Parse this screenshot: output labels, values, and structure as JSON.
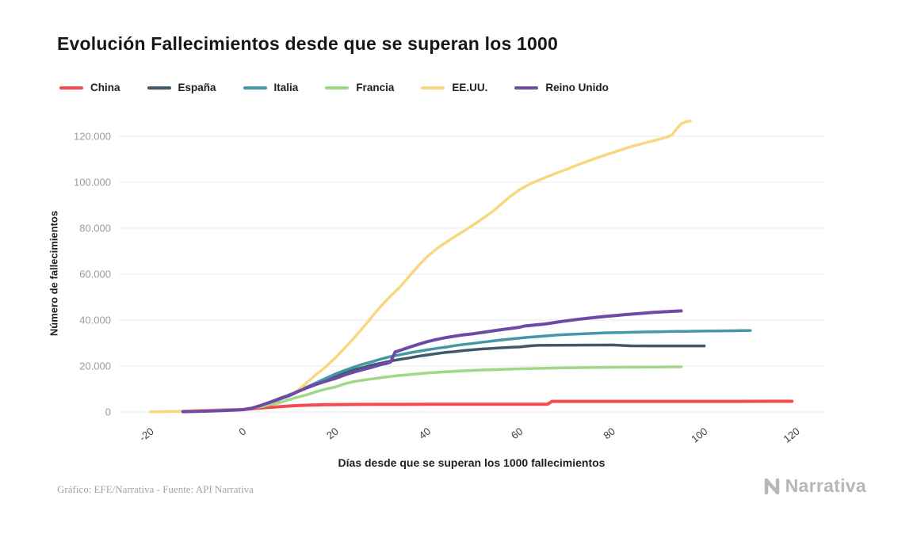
{
  "header": {
    "title": "Evolución Fallecimientos desde que se superan los 1000"
  },
  "footer": {
    "credit": "Gráfico: EFE/Narrativa - Fuente: API Narrativa",
    "brand": "Narrativa"
  },
  "chart_data": {
    "type": "line",
    "title": "Evolución Fallecimientos desde que se superan los 1000",
    "xlabel": "Días desde que se superan los 1000 fallecimientos",
    "ylabel": "Número de fallecimientos",
    "xlim": [
      -27,
      126
    ],
    "ylim": [
      0,
      130000
    ],
    "grid": "horizontal",
    "legend_position": "top",
    "x_ticks": [
      -20,
      0,
      20,
      40,
      60,
      80,
      100,
      120
    ],
    "y_ticks": [
      0,
      20000,
      40000,
      60000,
      80000,
      100000,
      120000
    ],
    "y_tick_labels": [
      "0",
      "20.000",
      "40.000",
      "60.000",
      "80.000",
      "100.000",
      "120.000"
    ],
    "gridline_color": "#e9e9e9",
    "y_tick_color": "#9b9b9b",
    "x_tick_color": "#3d3d3d",
    "series": [
      {
        "id": "china",
        "name": "China",
        "color": "#f74a4e",
        "width": 4,
        "points": [
          [
            -13,
            250
          ],
          [
            -11,
            400
          ],
          [
            -9,
            550
          ],
          [
            -7,
            700
          ],
          [
            -5,
            820
          ],
          [
            -3,
            920
          ],
          [
            -1,
            980
          ],
          [
            0,
            1050
          ],
          [
            2,
            1400
          ],
          [
            4,
            1750
          ],
          [
            6,
            2050
          ],
          [
            8,
            2350
          ],
          [
            10,
            2600
          ],
          [
            12,
            2800
          ],
          [
            14,
            2950
          ],
          [
            16,
            3070
          ],
          [
            18,
            3160
          ],
          [
            20,
            3220
          ],
          [
            24,
            3270
          ],
          [
            28,
            3300
          ],
          [
            32,
            3310
          ],
          [
            36,
            3320
          ],
          [
            40,
            3330
          ],
          [
            45,
            3335
          ],
          [
            50,
            3340
          ],
          [
            55,
            3340
          ],
          [
            60,
            3340
          ],
          [
            66,
            3350
          ],
          [
            67,
            4630
          ],
          [
            72,
            4630
          ],
          [
            78,
            4632
          ],
          [
            84,
            4633
          ],
          [
            90,
            4633
          ],
          [
            96,
            4634
          ],
          [
            102,
            4634
          ],
          [
            108,
            4636
          ],
          [
            114,
            4638
          ],
          [
            119,
            4640
          ]
        ]
      },
      {
        "id": "espana",
        "name": "España",
        "color": "#3d5a68",
        "width": 3.5,
        "points": [
          [
            0,
            1000
          ],
          [
            2,
            1750
          ],
          [
            4,
            2810
          ],
          [
            6,
            4400
          ],
          [
            8,
            5980
          ],
          [
            10,
            7340
          ],
          [
            12,
            9050
          ],
          [
            14,
            10940
          ],
          [
            16,
            12640
          ],
          [
            18,
            14050
          ],
          [
            20,
            15440
          ],
          [
            22,
            16970
          ],
          [
            24,
            18260
          ],
          [
            26,
            19320
          ],
          [
            28,
            20450
          ],
          [
            30,
            21280
          ],
          [
            32,
            22160
          ],
          [
            34,
            22900
          ],
          [
            36,
            23520
          ],
          [
            38,
            24280
          ],
          [
            40,
            24820
          ],
          [
            42,
            25430
          ],
          [
            44,
            25960
          ],
          [
            46,
            26300
          ],
          [
            48,
            26750
          ],
          [
            50,
            27120
          ],
          [
            52,
            27450
          ],
          [
            54,
            27700
          ],
          [
            56,
            27940
          ],
          [
            58,
            28130
          ],
          [
            60,
            28320
          ],
          [
            62,
            28750
          ],
          [
            64,
            29010
          ],
          [
            68,
            29080
          ],
          [
            72,
            29120
          ],
          [
            76,
            29150
          ],
          [
            80,
            29160
          ],
          [
            84,
            28780
          ],
          [
            88,
            28750
          ],
          [
            92,
            28750
          ],
          [
            96,
            28750
          ],
          [
            100,
            28760
          ]
        ]
      },
      {
        "id": "italia",
        "name": "Italia",
        "color": "#4596a6",
        "width": 3.5,
        "points": [
          [
            0,
            1020
          ],
          [
            2,
            1800
          ],
          [
            4,
            2700
          ],
          [
            6,
            3900
          ],
          [
            8,
            5480
          ],
          [
            10,
            7500
          ],
          [
            12,
            9130
          ],
          [
            14,
            11000
          ],
          [
            16,
            12830
          ],
          [
            18,
            14680
          ],
          [
            20,
            16520
          ],
          [
            22,
            18080
          ],
          [
            24,
            19470
          ],
          [
            26,
            20800
          ],
          [
            28,
            21860
          ],
          [
            30,
            23080
          ],
          [
            32,
            24110
          ],
          [
            34,
            24900
          ],
          [
            36,
            25690
          ],
          [
            38,
            26380
          ],
          [
            40,
            27080
          ],
          [
            42,
            27680
          ],
          [
            44,
            28240
          ],
          [
            46,
            28880
          ],
          [
            48,
            29410
          ],
          [
            50,
            29900
          ],
          [
            52,
            30400
          ],
          [
            54,
            30850
          ],
          [
            56,
            31360
          ],
          [
            58,
            31760
          ],
          [
            60,
            32170
          ],
          [
            62,
            32550
          ],
          [
            64,
            32870
          ],
          [
            66,
            33140
          ],
          [
            68,
            33470
          ],
          [
            70,
            33690
          ],
          [
            72,
            33900
          ],
          [
            74,
            34080
          ],
          [
            76,
            34250
          ],
          [
            78,
            34400
          ],
          [
            80,
            34500
          ],
          [
            82,
            34600
          ],
          [
            84,
            34700
          ],
          [
            86,
            34790
          ],
          [
            88,
            34870
          ],
          [
            90,
            34940
          ],
          [
            92,
            35000
          ],
          [
            94,
            35060
          ],
          [
            96,
            35110
          ],
          [
            98,
            35160
          ],
          [
            100,
            35210
          ],
          [
            102,
            35260
          ],
          [
            104,
            35310
          ],
          [
            106,
            35360
          ],
          [
            108,
            35400
          ],
          [
            110,
            35440
          ]
        ]
      },
      {
        "id": "francia",
        "name": "Francia",
        "color": "#a0d788",
        "width": 3.5,
        "points": [
          [
            0,
            1100
          ],
          [
            2,
            1700
          ],
          [
            4,
            2320
          ],
          [
            6,
            3290
          ],
          [
            8,
            4030
          ],
          [
            10,
            5390
          ],
          [
            12,
            6520
          ],
          [
            14,
            7560
          ],
          [
            16,
            8910
          ],
          [
            18,
            10000
          ],
          [
            20,
            10870
          ],
          [
            22,
            12210
          ],
          [
            24,
            13200
          ],
          [
            26,
            13830
          ],
          [
            28,
            14400
          ],
          [
            30,
            14970
          ],
          [
            32,
            15450
          ],
          [
            34,
            15900
          ],
          [
            36,
            16240
          ],
          [
            38,
            16640
          ],
          [
            40,
            17000
          ],
          [
            42,
            17250
          ],
          [
            44,
            17500
          ],
          [
            46,
            17720
          ],
          [
            48,
            17920
          ],
          [
            50,
            18100
          ],
          [
            52,
            18260
          ],
          [
            54,
            18400
          ],
          [
            56,
            18540
          ],
          [
            58,
            18660
          ],
          [
            60,
            18780
          ],
          [
            62,
            18880
          ],
          [
            64,
            18970
          ],
          [
            66,
            19050
          ],
          [
            68,
            19130
          ],
          [
            70,
            19200
          ],
          [
            72,
            19260
          ],
          [
            74,
            19310
          ],
          [
            76,
            19360
          ],
          [
            78,
            19400
          ],
          [
            80,
            19440
          ],
          [
            82,
            19470
          ],
          [
            84,
            19500
          ],
          [
            86,
            19530
          ],
          [
            88,
            19560
          ],
          [
            90,
            19590
          ],
          [
            92,
            19620
          ],
          [
            94,
            19650
          ],
          [
            95,
            19670
          ]
        ]
      },
      {
        "id": "eeuu",
        "name": "EE.UU.",
        "color": "#f9d77e",
        "width": 3.5,
        "points": [
          [
            -20,
            100
          ],
          [
            -17,
            180
          ],
          [
            -14,
            280
          ],
          [
            -11,
            420
          ],
          [
            -8,
            580
          ],
          [
            -5,
            760
          ],
          [
            -2,
            920
          ],
          [
            0,
            1050
          ],
          [
            2,
            1800
          ],
          [
            4,
            2800
          ],
          [
            6,
            4200
          ],
          [
            8,
            5500
          ],
          [
            10,
            7100
          ],
          [
            12,
            9600
          ],
          [
            14,
            13000
          ],
          [
            16,
            16500
          ],
          [
            18,
            19700
          ],
          [
            20,
            23500
          ],
          [
            22,
            27700
          ],
          [
            24,
            32000
          ],
          [
            26,
            36600
          ],
          [
            28,
            41500
          ],
          [
            30,
            46200
          ],
          [
            32,
            50400
          ],
          [
            34,
            54300
          ],
          [
            36,
            58900
          ],
          [
            38,
            63600
          ],
          [
            40,
            67700
          ],
          [
            42,
            71000
          ],
          [
            44,
            73800
          ],
          [
            46,
            76400
          ],
          [
            48,
            78900
          ],
          [
            50,
            81500
          ],
          [
            52,
            84200
          ],
          [
            54,
            87000
          ],
          [
            56,
            90500
          ],
          [
            58,
            93900
          ],
          [
            60,
            96800
          ],
          [
            62,
            99000
          ],
          [
            64,
            100800
          ],
          [
            66,
            102400
          ],
          [
            68,
            104000
          ],
          [
            70,
            105500
          ],
          [
            72,
            107100
          ],
          [
            74,
            108600
          ],
          [
            76,
            110100
          ],
          [
            78,
            111500
          ],
          [
            80,
            112800
          ],
          [
            82,
            114100
          ],
          [
            84,
            115400
          ],
          [
            86,
            116500
          ],
          [
            88,
            117600
          ],
          [
            90,
            118600
          ],
          [
            92,
            119700
          ],
          [
            93,
            120600
          ],
          [
            94,
            123200
          ],
          [
            95,
            125400
          ],
          [
            96,
            126300
          ],
          [
            97,
            126700
          ]
        ]
      },
      {
        "id": "reino-unido",
        "name": "Reino Unido",
        "color": "#6d4aa5",
        "width": 4,
        "points": [
          [
            -13,
            150
          ],
          [
            -10,
            260
          ],
          [
            -7,
            420
          ],
          [
            -4,
            650
          ],
          [
            -2,
            830
          ],
          [
            0,
            1020
          ],
          [
            2,
            1650
          ],
          [
            4,
            2920
          ],
          [
            6,
            4320
          ],
          [
            8,
            5680
          ],
          [
            10,
            7100
          ],
          [
            12,
            8960
          ],
          [
            14,
            10610
          ],
          [
            16,
            12100
          ],
          [
            18,
            13400
          ],
          [
            20,
            14580
          ],
          [
            22,
            16060
          ],
          [
            24,
            17340
          ],
          [
            26,
            18500
          ],
          [
            28,
            19510
          ],
          [
            30,
            20730
          ],
          [
            31,
            21090
          ],
          [
            32,
            21680
          ],
          [
            33,
            26100
          ],
          [
            34,
            26770
          ],
          [
            36,
            28130
          ],
          [
            38,
            29420
          ],
          [
            40,
            30620
          ],
          [
            42,
            31590
          ],
          [
            44,
            32370
          ],
          [
            46,
            33020
          ],
          [
            48,
            33610
          ],
          [
            50,
            34070
          ],
          [
            52,
            34640
          ],
          [
            54,
            35230
          ],
          [
            56,
            35820
          ],
          [
            58,
            36330
          ],
          [
            60,
            36910
          ],
          [
            61,
            37430
          ],
          [
            63,
            37800
          ],
          [
            65,
            38180
          ],
          [
            67,
            38750
          ],
          [
            69,
            39370
          ],
          [
            71,
            39900
          ],
          [
            73,
            40400
          ],
          [
            75,
            40860
          ],
          [
            77,
            41280
          ],
          [
            79,
            41680
          ],
          [
            81,
            42050
          ],
          [
            83,
            42400
          ],
          [
            85,
            42740
          ],
          [
            87,
            43050
          ],
          [
            89,
            43350
          ],
          [
            91,
            43600
          ],
          [
            93,
            43810
          ],
          [
            95,
            44000
          ]
        ]
      }
    ]
  }
}
